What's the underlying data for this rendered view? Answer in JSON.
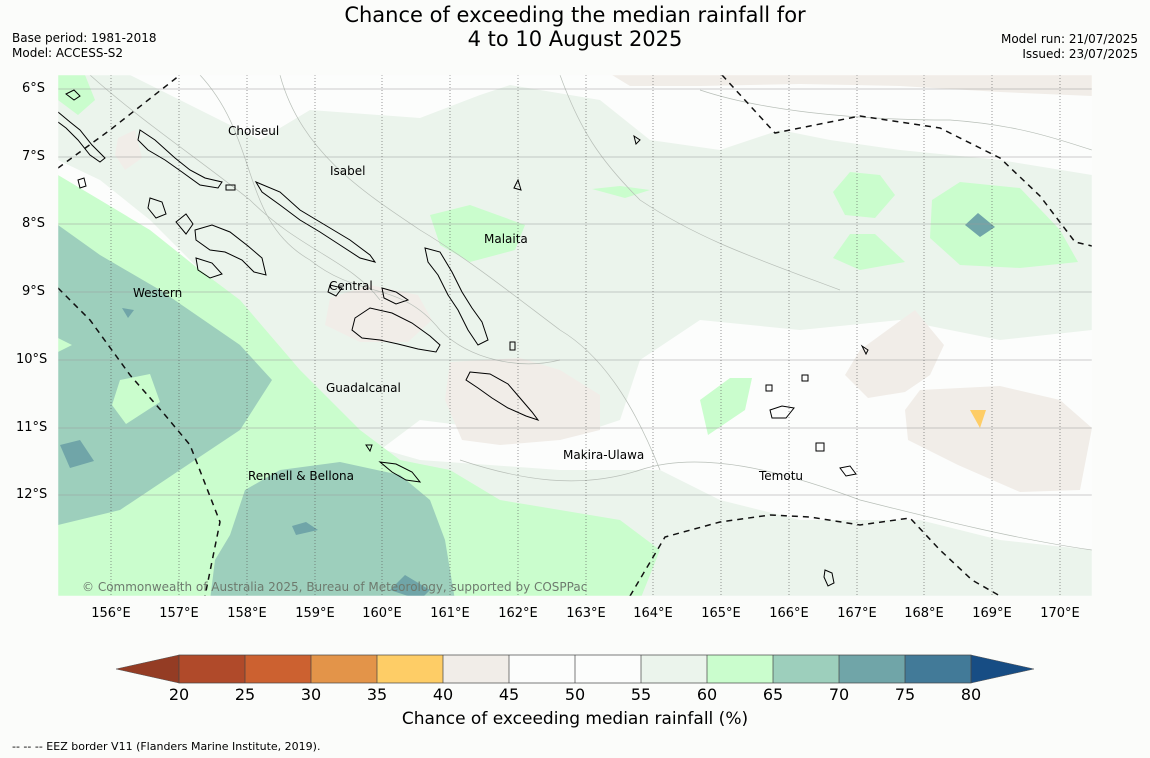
{
  "title_line1": "Chance of exceeding the median rainfall for",
  "title_line2": "4 to 10 August 2025",
  "base_period": "Base period: 1981-2018",
  "model": "Model: ACCESS-S2",
  "model_run": "Model run: 21/07/2025",
  "issued": "Issued: 23/07/2025",
  "lat_labels": [
    "6°S",
    "7°S",
    "8°S",
    "9°S",
    "10°S",
    "11°S",
    "12°S"
  ],
  "lon_labels": [
    "156°E",
    "157°E",
    "158°E",
    "159°E",
    "160°E",
    "161°E",
    "162°E",
    "163°E",
    "164°E",
    "165°E",
    "166°E",
    "167°E",
    "168°E",
    "169°E",
    "170°E"
  ],
  "regions": [
    "Choiseul",
    "Isabel",
    "Malaita",
    "Western",
    "Central",
    "Guadalcanal",
    "Makira-Ulawa",
    "Rennell & Bellona",
    "Temotu"
  ],
  "copyright": "© Commonwealth of Australia 2025, Bureau of Meteorology, supported by COSPPac",
  "colorbar": {
    "ticks": [
      "20",
      "25",
      "30",
      "35",
      "40",
      "45",
      "50",
      "55",
      "60",
      "65",
      "70",
      "75",
      "80"
    ],
    "colors": {
      "below_20": "#943c24",
      "20_25": "#b04a2a",
      "25_30": "#cc6130",
      "30_35": "#e39449",
      "35_40": "#fecd66",
      "40_45": "#f1ede8",
      "45_50": "#fcfdfc",
      "50_55": "#fcfdfc",
      "55_60": "#ebf4ec",
      "60_65": "#cafdcd",
      "65_70": "#9dcfbc",
      "70_75": "#70a5a8",
      "75_80": "#427a98",
      "above_80": "#174d84"
    },
    "label": "Chance of exceeding median rainfall (%)"
  },
  "footnote": "--  --  -- EEZ border V11 (Flanders Marine Institute, 2019)."
}
